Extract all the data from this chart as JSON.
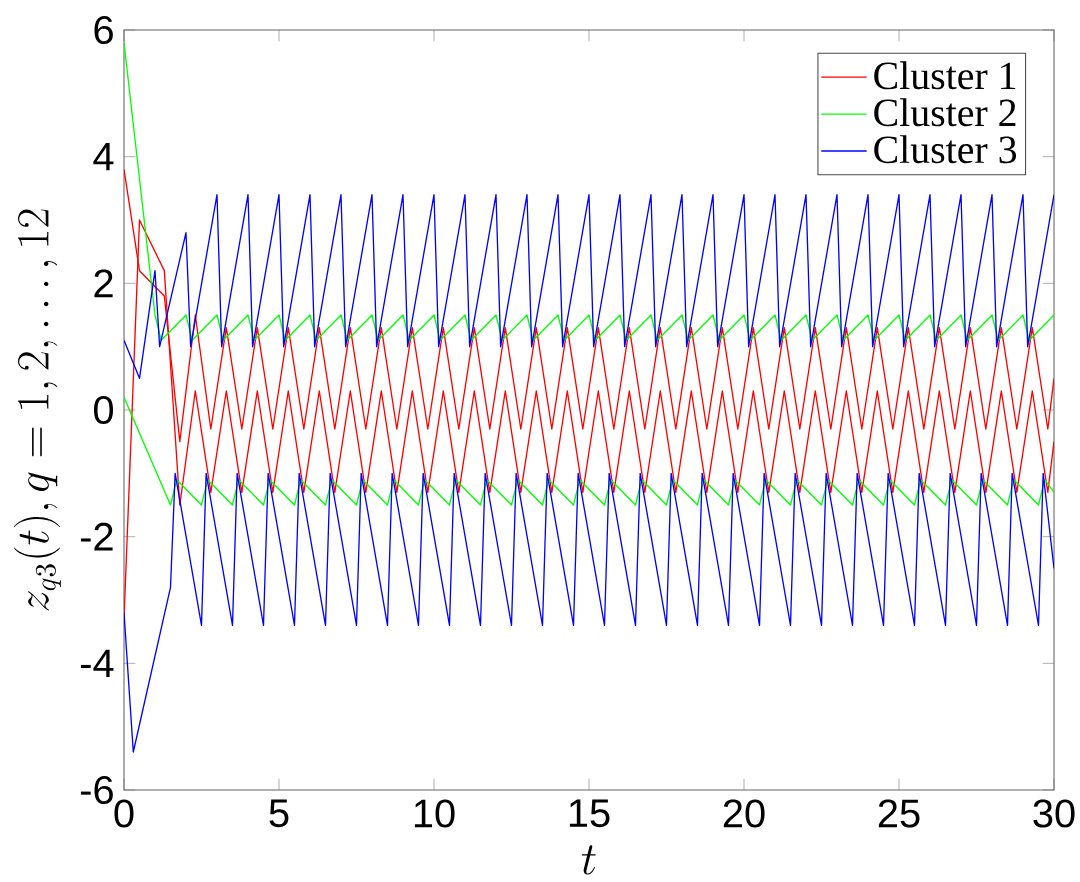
{
  "chart_data": {
    "type": "line",
    "xlabel": "t",
    "ylabel": "z_{q3}(t), q = 1, 2, \\ldots, 12",
    "xlim": [
      0,
      30
    ],
    "ylim": [
      -6,
      6
    ],
    "xticks": [
      0,
      5,
      10,
      15,
      20,
      25,
      30
    ],
    "yticks": [
      -6,
      -4,
      -2,
      0,
      2,
      4,
      6
    ],
    "legend": "top right",
    "series": [
      {
        "name": "Cluster 1",
        "color": "#ff0000",
        "x": [
          0,
          0.5,
          1.3,
          1.8,
          2.3,
          2.8,
          3.3,
          3.8,
          4.3,
          4.8,
          5.3,
          5.8,
          6.3,
          6.8,
          7.3,
          7.8,
          8.3,
          8.8,
          9.3,
          9.8,
          10.3,
          10.8,
          11.3,
          11.8,
          12.3,
          12.8,
          13.3,
          13.8,
          14.3,
          14.8,
          15.3,
          15.8,
          16.3,
          16.8,
          17.3,
          17.8,
          18.3,
          18.8,
          19.3,
          19.8,
          20.3,
          20.8,
          21.3,
          21.8,
          22.3,
          22.8,
          23.3,
          23.8,
          24.3,
          24.8,
          25.3,
          25.8,
          26.3,
          26.8,
          27.3,
          27.8,
          28.3,
          28.8,
          29.3,
          29.8,
          30
        ],
        "values": [
          3.8,
          2.2,
          1.8,
          -0.5,
          1.5,
          -0.3,
          1.3,
          -0.3,
          1.3,
          -0.3,
          1.3,
          -0.3,
          1.3,
          -0.3,
          1.3,
          -0.3,
          1.3,
          -0.3,
          1.3,
          -0.3,
          1.3,
          -0.3,
          1.3,
          -0.3,
          1.3,
          -0.3,
          1.3,
          -0.3,
          1.3,
          -0.3,
          1.3,
          -0.3,
          1.3,
          -0.3,
          1.3,
          -0.3,
          1.3,
          -0.3,
          1.3,
          -0.3,
          1.3,
          -0.3,
          1.3,
          -0.3,
          1.3,
          -0.3,
          1.3,
          -0.3,
          1.3,
          -0.3,
          1.3,
          -0.3,
          1.3,
          -0.3,
          1.3,
          -0.3,
          1.3,
          -0.3,
          1.3,
          -0.3,
          0.5
        ]
      },
      {
        "color": "#ff0000",
        "x": [
          0,
          0.5,
          1.3,
          1.8,
          2.3,
          2.8,
          3.3,
          3.8,
          4.3,
          4.8,
          5.3,
          5.8,
          6.3,
          6.8,
          7.3,
          7.8,
          8.3,
          8.8,
          9.3,
          9.8,
          10.3,
          10.8,
          11.3,
          11.8,
          12.3,
          12.8,
          13.3,
          13.8,
          14.3,
          14.8,
          15.3,
          15.8,
          16.3,
          16.8,
          17.3,
          17.8,
          18.3,
          18.8,
          19.3,
          19.8,
          20.3,
          20.8,
          21.3,
          21.8,
          22.3,
          22.8,
          23.3,
          23.8,
          24.3,
          24.8,
          25.3,
          25.8,
          26.3,
          26.8,
          27.3,
          27.8,
          28.3,
          28.8,
          29.3,
          29.8,
          30
        ],
        "values": [
          -3.3,
          3.0,
          2.2,
          -1.5,
          0.3,
          -1.3,
          0.3,
          -1.3,
          0.3,
          -1.3,
          0.3,
          -1.3,
          0.3,
          -1.3,
          0.3,
          -1.3,
          0.3,
          -1.3,
          0.3,
          -1.3,
          0.3,
          -1.3,
          0.3,
          -1.3,
          0.3,
          -1.3,
          0.3,
          -1.3,
          0.3,
          -1.3,
          0.3,
          -1.3,
          0.3,
          -1.3,
          0.3,
          -1.3,
          0.3,
          -1.3,
          0.3,
          -1.3,
          0.3,
          -1.3,
          0.3,
          -1.3,
          0.3,
          -1.3,
          0.3,
          -1.3,
          0.3,
          -1.3,
          0.3,
          -1.3,
          0.3,
          -1.3,
          0.3,
          -1.3,
          0.3,
          -1.3,
          0.3,
          -1.3,
          -0.5
        ]
      },
      {
        "name": "Cluster 2",
        "color": "#00ff00",
        "x": [
          0,
          1,
          1.2,
          2,
          2.2,
          3,
          3.2,
          4,
          4.2,
          5,
          5.2,
          6,
          6.2,
          7,
          7.2,
          8,
          8.2,
          9,
          9.2,
          10,
          10.2,
          11,
          11.2,
          12,
          12.2,
          13,
          13.2,
          14,
          14.2,
          15,
          15.2,
          16,
          16.2,
          17,
          17.2,
          18,
          18.2,
          19,
          19.2,
          20,
          20.2,
          21,
          21.2,
          22,
          22.2,
          23,
          23.2,
          24,
          24.2,
          25,
          25.2,
          26,
          26.2,
          27,
          27.2,
          28,
          28.2,
          29,
          29.2,
          30
        ],
        "values": [
          5.8,
          1.5,
          1.1,
          1.5,
          1.1,
          1.5,
          1.1,
          1.5,
          1.1,
          1.5,
          1.1,
          1.5,
          1.1,
          1.5,
          1.1,
          1.5,
          1.1,
          1.5,
          1.1,
          1.5,
          1.1,
          1.5,
          1.1,
          1.5,
          1.1,
          1.5,
          1.1,
          1.5,
          1.1,
          1.5,
          1.1,
          1.5,
          1.1,
          1.5,
          1.1,
          1.5,
          1.1,
          1.5,
          1.1,
          1.5,
          1.1,
          1.5,
          1.1,
          1.5,
          1.1,
          1.5,
          1.1,
          1.5,
          1.1,
          1.5,
          1.1,
          1.5,
          1.1,
          1.5,
          1.1,
          1.5,
          1.1,
          1.5,
          1.1,
          1.5
        ]
      },
      {
        "color": "#00ff00",
        "x": [
          0,
          1.5,
          1.7,
          2.5,
          2.7,
          3.5,
          3.7,
          4.5,
          4.7,
          5.5,
          5.7,
          6.5,
          6.7,
          7.5,
          7.7,
          8.5,
          8.7,
          9.5,
          9.7,
          10.5,
          10.7,
          11.5,
          11.7,
          12.5,
          12.7,
          13.5,
          13.7,
          14.5,
          14.7,
          15.5,
          15.7,
          16.5,
          16.7,
          17.5,
          17.7,
          18.5,
          18.7,
          19.5,
          19.7,
          20.5,
          20.7,
          21.5,
          21.7,
          22.5,
          22.7,
          23.5,
          23.7,
          24.5,
          24.7,
          25.5,
          25.7,
          26.5,
          26.7,
          27.5,
          27.7,
          28.5,
          28.7,
          29.5,
          29.7,
          30
        ],
        "values": [
          0.2,
          -1.5,
          -1.1,
          -1.5,
          -1.1,
          -1.5,
          -1.1,
          -1.5,
          -1.1,
          -1.5,
          -1.1,
          -1.5,
          -1.1,
          -1.5,
          -1.1,
          -1.5,
          -1.1,
          -1.5,
          -1.1,
          -1.5,
          -1.1,
          -1.5,
          -1.1,
          -1.5,
          -1.1,
          -1.5,
          -1.1,
          -1.5,
          -1.1,
          -1.5,
          -1.1,
          -1.5,
          -1.1,
          -1.5,
          -1.1,
          -1.5,
          -1.1,
          -1.5,
          -1.1,
          -1.5,
          -1.1,
          -1.5,
          -1.1,
          -1.5,
          -1.1,
          -1.5,
          -1.1,
          -1.5,
          -1.1,
          -1.5,
          -1.1,
          -1.5,
          -1.1,
          -1.5,
          -1.1,
          -1.5,
          -1.1,
          -1.5,
          -1.1,
          -1.3
        ]
      },
      {
        "name": "Cluster 3",
        "color": "#0000ff",
        "x": [
          0,
          0.5,
          1,
          1.15,
          2,
          2.15,
          3,
          3.15,
          4,
          4.15,
          5,
          5.15,
          6,
          6.15,
          7,
          7.15,
          8,
          8.15,
          9,
          9.15,
          10,
          10.15,
          11,
          11.15,
          12,
          12.15,
          13,
          13.15,
          14,
          14.15,
          15,
          15.15,
          16,
          16.15,
          17,
          17.15,
          18,
          18.15,
          19,
          19.15,
          20,
          20.15,
          21,
          21.15,
          22,
          22.15,
          23,
          23.15,
          24,
          24.15,
          25,
          25.15,
          26,
          26.15,
          27,
          27.15,
          28,
          28.15,
          29,
          29.15,
          30
        ],
        "values": [
          1.1,
          0.5,
          2.2,
          1.0,
          2.8,
          1.0,
          3.4,
          1.0,
          3.4,
          1.0,
          3.4,
          1.0,
          3.4,
          1.0,
          3.4,
          1.0,
          3.4,
          1.0,
          3.4,
          1.0,
          3.4,
          1.0,
          3.4,
          1.0,
          3.4,
          1.0,
          3.4,
          1.0,
          3.4,
          1.0,
          3.4,
          1.0,
          3.4,
          1.0,
          3.4,
          1.0,
          3.4,
          1.0,
          3.4,
          1.0,
          3.4,
          1.0,
          3.4,
          1.0,
          3.4,
          1.0,
          3.4,
          1.0,
          3.4,
          1.0,
          3.4,
          1.0,
          3.4,
          1.0,
          3.4,
          1.0,
          3.4,
          1.0,
          3.4,
          1.0,
          3.4
        ]
      },
      {
        "color": "#0000ff",
        "x": [
          0,
          0.3,
          1.5,
          1.65,
          2.5,
          2.65,
          3.5,
          3.65,
          4.5,
          4.65,
          5.5,
          5.65,
          6.5,
          6.65,
          7.5,
          7.65,
          8.5,
          8.65,
          9.5,
          9.65,
          10.5,
          10.65,
          11.5,
          11.65,
          12.5,
          12.65,
          13.5,
          13.65,
          14.5,
          14.65,
          15.5,
          15.65,
          16.5,
          16.65,
          17.5,
          17.65,
          18.5,
          18.65,
          19.5,
          19.65,
          20.5,
          20.65,
          21.5,
          21.65,
          22.5,
          22.65,
          23.5,
          23.65,
          24.5,
          24.65,
          25.5,
          25.65,
          26.5,
          26.65,
          27.5,
          27.65,
          28.5,
          28.65,
          29.5,
          29.65,
          30
        ],
        "values": [
          -3.2,
          -5.4,
          -2.8,
          -1.0,
          -3.4,
          -1.0,
          -3.4,
          -1.0,
          -3.4,
          -1.0,
          -3.4,
          -1.0,
          -3.4,
          -1.0,
          -3.4,
          -1.0,
          -3.4,
          -1.0,
          -3.4,
          -1.0,
          -3.4,
          -1.0,
          -3.4,
          -1.0,
          -3.4,
          -1.0,
          -3.4,
          -1.0,
          -3.4,
          -1.0,
          -3.4,
          -1.0,
          -3.4,
          -1.0,
          -3.4,
          -1.0,
          -3.4,
          -1.0,
          -3.4,
          -1.0,
          -3.4,
          -1.0,
          -3.4,
          -1.0,
          -3.4,
          -1.0,
          -3.4,
          -1.0,
          -3.4,
          -1.0,
          -3.4,
          -1.0,
          -3.4,
          -1.0,
          -3.4,
          -1.0,
          -3.4,
          -1.0,
          -3.4,
          -1.0,
          -2.5
        ]
      }
    ]
  }
}
